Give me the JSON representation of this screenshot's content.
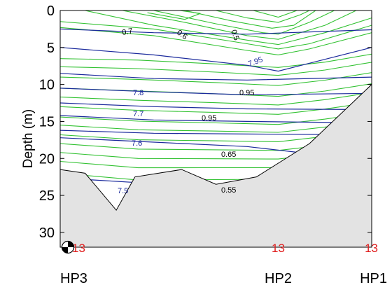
{
  "chart_data": {
    "type": "contour",
    "ylabel": "Depth (m)",
    "yaxis": {
      "reversed": true,
      "ylim": [
        0,
        32
      ],
      "ticks": [
        0,
        5,
        10,
        15,
        20,
        25,
        30
      ]
    },
    "stations": [
      {
        "name": "HP3",
        "x": 0
      },
      {
        "name": "HP2",
        "x": 0.7
      },
      {
        "name": "HP1",
        "x": 1
      }
    ],
    "bottom_values": [
      {
        "station": "HP3",
        "text": "13"
      },
      {
        "station": "HP2",
        "text": "13"
      },
      {
        "station": "HP1",
        "text": "13"
      }
    ],
    "bathymetry_depth": [
      [
        0,
        21.5
      ],
      [
        0.08,
        22
      ],
      [
        0.18,
        27
      ],
      [
        0.24,
        22.5
      ],
      [
        0.39,
        21.5
      ],
      [
        0.5,
        23.5
      ],
      [
        0.63,
        22.5
      ],
      [
        0.8,
        18
      ],
      [
        1,
        10
      ]
    ],
    "green_series_labels": [
      "0.7",
      "0.6",
      "0.5",
      "0.95",
      "0.95",
      "0.95",
      "0.65",
      "0.55"
    ],
    "blue_series_labels": [
      "7.95",
      "7.8",
      "7.7",
      "7.6",
      "7.5"
    ],
    "colors": {
      "green_contours": "#33c233",
      "blue_contours": "#1b2a9c",
      "seabed": "#e3e3e3",
      "bottom_value": "#e02020"
    }
  }
}
